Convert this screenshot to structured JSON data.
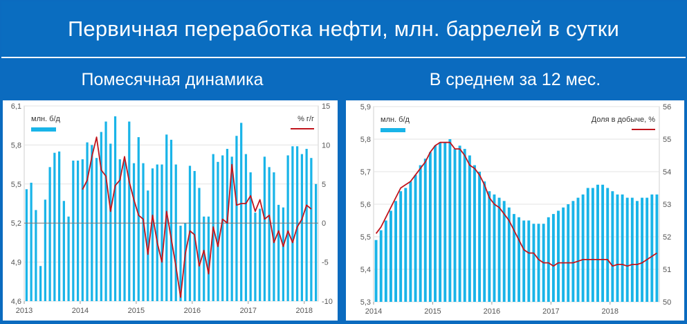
{
  "title": "Первичная переработка нефти, млн. баррелей в сутки",
  "subtitles": {
    "left": "Помесячная динамика",
    "right": "В среднем за 12 мес."
  },
  "colors": {
    "background": "#0b6bbf",
    "bar": "#19b4e8",
    "line": "#c0141c",
    "grid": "#e3e3e3"
  },
  "chart_data": [
    {
      "type": "bar",
      "combo": "bar+line",
      "title": "Помесячная динамика",
      "legend": [
        {
          "label": "млн. б/д",
          "kind": "bar",
          "color": "#19b4e8",
          "placement": "top-left"
        },
        {
          "label": "% г/г",
          "kind": "line",
          "color": "#c0141c",
          "placement": "top-right"
        }
      ],
      "x_tick_labels": [
        "2013",
        "2014",
        "2015",
        "2016",
        "2017",
        "2018"
      ],
      "y_left": {
        "ticks": [
          "4,6",
          "4,9",
          "5,2",
          "5,5",
          "5,8",
          "6,1"
        ],
        "min": 4.6,
        "max": 6.1
      },
      "y_right": {
        "ticks": [
          "-10",
          "-5",
          "0",
          "5",
          "10",
          "15"
        ],
        "min": -10,
        "max": 15
      },
      "zero_line_right": 0,
      "x_start": "2013-01",
      "series": [
        {
          "name": "млн. б/д",
          "axis": "left",
          "values": [
            5.46,
            5.51,
            5.3,
            4.87,
            5.38,
            5.63,
            5.74,
            5.75,
            5.37,
            5.25,
            5.68,
            5.68,
            5.69,
            5.82,
            5.8,
            5.7,
            5.9,
            5.98,
            5.81,
            6.02,
            5.69,
            5.68,
            5.98,
            5.66,
            5.86,
            5.66,
            5.45,
            5.62,
            5.65,
            5.65,
            5.88,
            5.84,
            5.65,
            5.18,
            5.2,
            5.64,
            5.6,
            5.47,
            5.25,
            5.25,
            5.73,
            5.67,
            5.72,
            5.77,
            5.71,
            5.87,
            5.97,
            5.73,
            5.59,
            5.28,
            5.31,
            5.71,
            5.63,
            5.59,
            5.34,
            5.32,
            5.72,
            5.79,
            5.79,
            5.73,
            5.77,
            5.7,
            5.5
          ]
        },
        {
          "name": "% г/г",
          "axis": "right",
          "start_index": 12,
          "values": [
            4.3,
            5.5,
            8.5,
            11.0,
            6.8,
            6.0,
            1.5,
            4.8,
            5.5,
            8.5,
            5.3,
            3.0,
            1.0,
            0.5,
            -4.0,
            1.0,
            -2.5,
            -5.0,
            1.5,
            -2.0,
            -5.5,
            -9.5,
            -4.0,
            -1.0,
            -1.5,
            -5.5,
            -3.5,
            -6.5,
            -0.5,
            -3.0,
            0.5,
            0.0,
            7.5,
            2.3,
            2.5,
            2.5,
            3.5,
            1.5,
            3.0,
            0.5,
            1.0,
            -2.5,
            -1.0,
            -3.0,
            -1.0,
            -2.5,
            -0.5,
            0.5,
            2.3,
            1.8
          ]
        }
      ]
    },
    {
      "type": "bar",
      "combo": "bar+line",
      "title": "В среднем за 12 мес.",
      "legend": [
        {
          "label": "млн. б/д",
          "kind": "bar",
          "color": "#19b4e8",
          "placement": "top-left"
        },
        {
          "label": "Доля в добыче, %",
          "kind": "line",
          "color": "#c0141c",
          "placement": "top-right"
        }
      ],
      "x_tick_labels": [
        "2014",
        "2015",
        "2016",
        "2017",
        "2018"
      ],
      "y_left": {
        "ticks": [
          "5,3",
          "5,4",
          "5,5",
          "5,6",
          "5,7",
          "5,8",
          "5,9"
        ],
        "min": 5.3,
        "max": 5.9
      },
      "y_right": {
        "ticks": [
          "50",
          "51",
          "52",
          "53",
          "54",
          "55",
          "56"
        ],
        "min": 50,
        "max": 56
      },
      "x_start": "2014-01",
      "series": [
        {
          "name": "млн. б/д",
          "axis": "left",
          "values": [
            5.49,
            5.52,
            5.55,
            5.58,
            5.61,
            5.64,
            5.65,
            5.67,
            5.69,
            5.72,
            5.74,
            5.76,
            5.78,
            5.79,
            5.79,
            5.8,
            5.77,
            5.78,
            5.77,
            5.75,
            5.72,
            5.7,
            5.67,
            5.64,
            5.63,
            5.62,
            5.61,
            5.59,
            5.57,
            5.56,
            5.55,
            5.55,
            5.54,
            5.54,
            5.54,
            5.56,
            5.57,
            5.58,
            5.59,
            5.6,
            5.61,
            5.62,
            5.63,
            5.65,
            5.65,
            5.66,
            5.66,
            5.65,
            5.64,
            5.63,
            5.63,
            5.62,
            5.62,
            5.61,
            5.62,
            5.62,
            5.63,
            5.63
          ]
        },
        {
          "name": "Доля в добыче, %",
          "axis": "right",
          "values": [
            52.1,
            52.3,
            52.6,
            52.9,
            53.2,
            53.5,
            53.6,
            53.7,
            53.9,
            54.1,
            54.3,
            54.6,
            54.8,
            54.9,
            54.9,
            54.9,
            54.7,
            54.7,
            54.5,
            54.2,
            54.1,
            53.9,
            53.6,
            53.2,
            53.0,
            52.9,
            52.7,
            52.5,
            52.2,
            51.9,
            51.6,
            51.5,
            51.5,
            51.3,
            51.2,
            51.2,
            51.1,
            51.2,
            51.2,
            51.2,
            51.2,
            51.25,
            51.3,
            51.3,
            51.3,
            51.3,
            51.3,
            51.3,
            51.1,
            51.15,
            51.15,
            51.1,
            51.15,
            51.15,
            51.2,
            51.3,
            51.4,
            51.5
          ]
        }
      ]
    }
  ]
}
